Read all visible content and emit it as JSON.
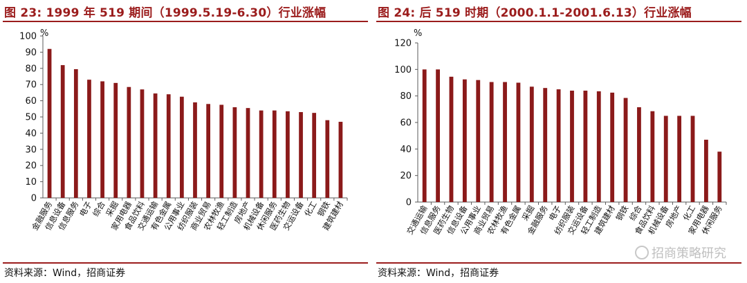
{
  "left": {
    "title": "图 23:  1999 年 519 期间（1999.5.19-6.30）行业涨幅",
    "source": "资料来源：Wind，招商证券"
  },
  "right": {
    "title": "图 24:  后 519 时期（2000.1.1-2001.6.13）行业涨幅",
    "source": "资料来源：Wind，招商证券",
    "watermark": "招商策略研究"
  },
  "colors": {
    "bar": "#8b1a1a",
    "accent": "#9b1c1c",
    "axis": "#595959"
  },
  "chart_data": [
    {
      "type": "bar",
      "title": "图 23:  1999 年 519 期间（1999.5.19-6.30）行业涨幅",
      "unit": "%",
      "ylim": [
        0,
        100
      ],
      "yticks": [
        0,
        10,
        20,
        30,
        40,
        50,
        60,
        70,
        80,
        90,
        100
      ],
      "categories": [
        "金融服务",
        "信息设备",
        "信息服务",
        "电子",
        "综合",
        "采掘",
        "家用电器",
        "食品饮料",
        "交通运输",
        "有色金属",
        "公用事业",
        "纺织服装",
        "商业贸易",
        "农林牧渔",
        "轻工制造",
        "房地产",
        "机械设备",
        "休闲服务",
        "医药生物",
        "交运设备",
        "化工",
        "钢铁",
        "建筑建材"
      ],
      "values": [
        92,
        82,
        79.5,
        73,
        72,
        71,
        68.5,
        67,
        64.5,
        64,
        62.5,
        59,
        58,
        57.5,
        56,
        55.5,
        54,
        54,
        53.5,
        53,
        52.5,
        48,
        47
      ],
      "grid": false
    },
    {
      "type": "bar",
      "title": "图 24:  后 519 时期（2000.1.1-2001.6.13）行业涨幅",
      "unit": "%",
      "ylim": [
        0,
        120
      ],
      "yticks": [
        0,
        20,
        40,
        60,
        80,
        100,
        120
      ],
      "categories": [
        "交通运输",
        "信息服务",
        "医药生物",
        "信息设备",
        "公用事业",
        "商业贸易",
        "农林牧渔",
        "有色金属",
        "采掘",
        "金融服务",
        "电子",
        "纺织服装",
        "交运设备",
        "轻工制造",
        "建筑建材",
        "钢铁",
        "综合",
        "食品饮料",
        "机械设备",
        "房地产",
        "化工",
        "家用电器",
        "休闲服务"
      ],
      "values": [
        100,
        100,
        94.5,
        92.5,
        92,
        90.5,
        90.5,
        90,
        87,
        86,
        85,
        84,
        84,
        83.5,
        82.5,
        78.5,
        71.5,
        68.5,
        65,
        65,
        65,
        47,
        38
      ],
      "grid": false
    }
  ]
}
